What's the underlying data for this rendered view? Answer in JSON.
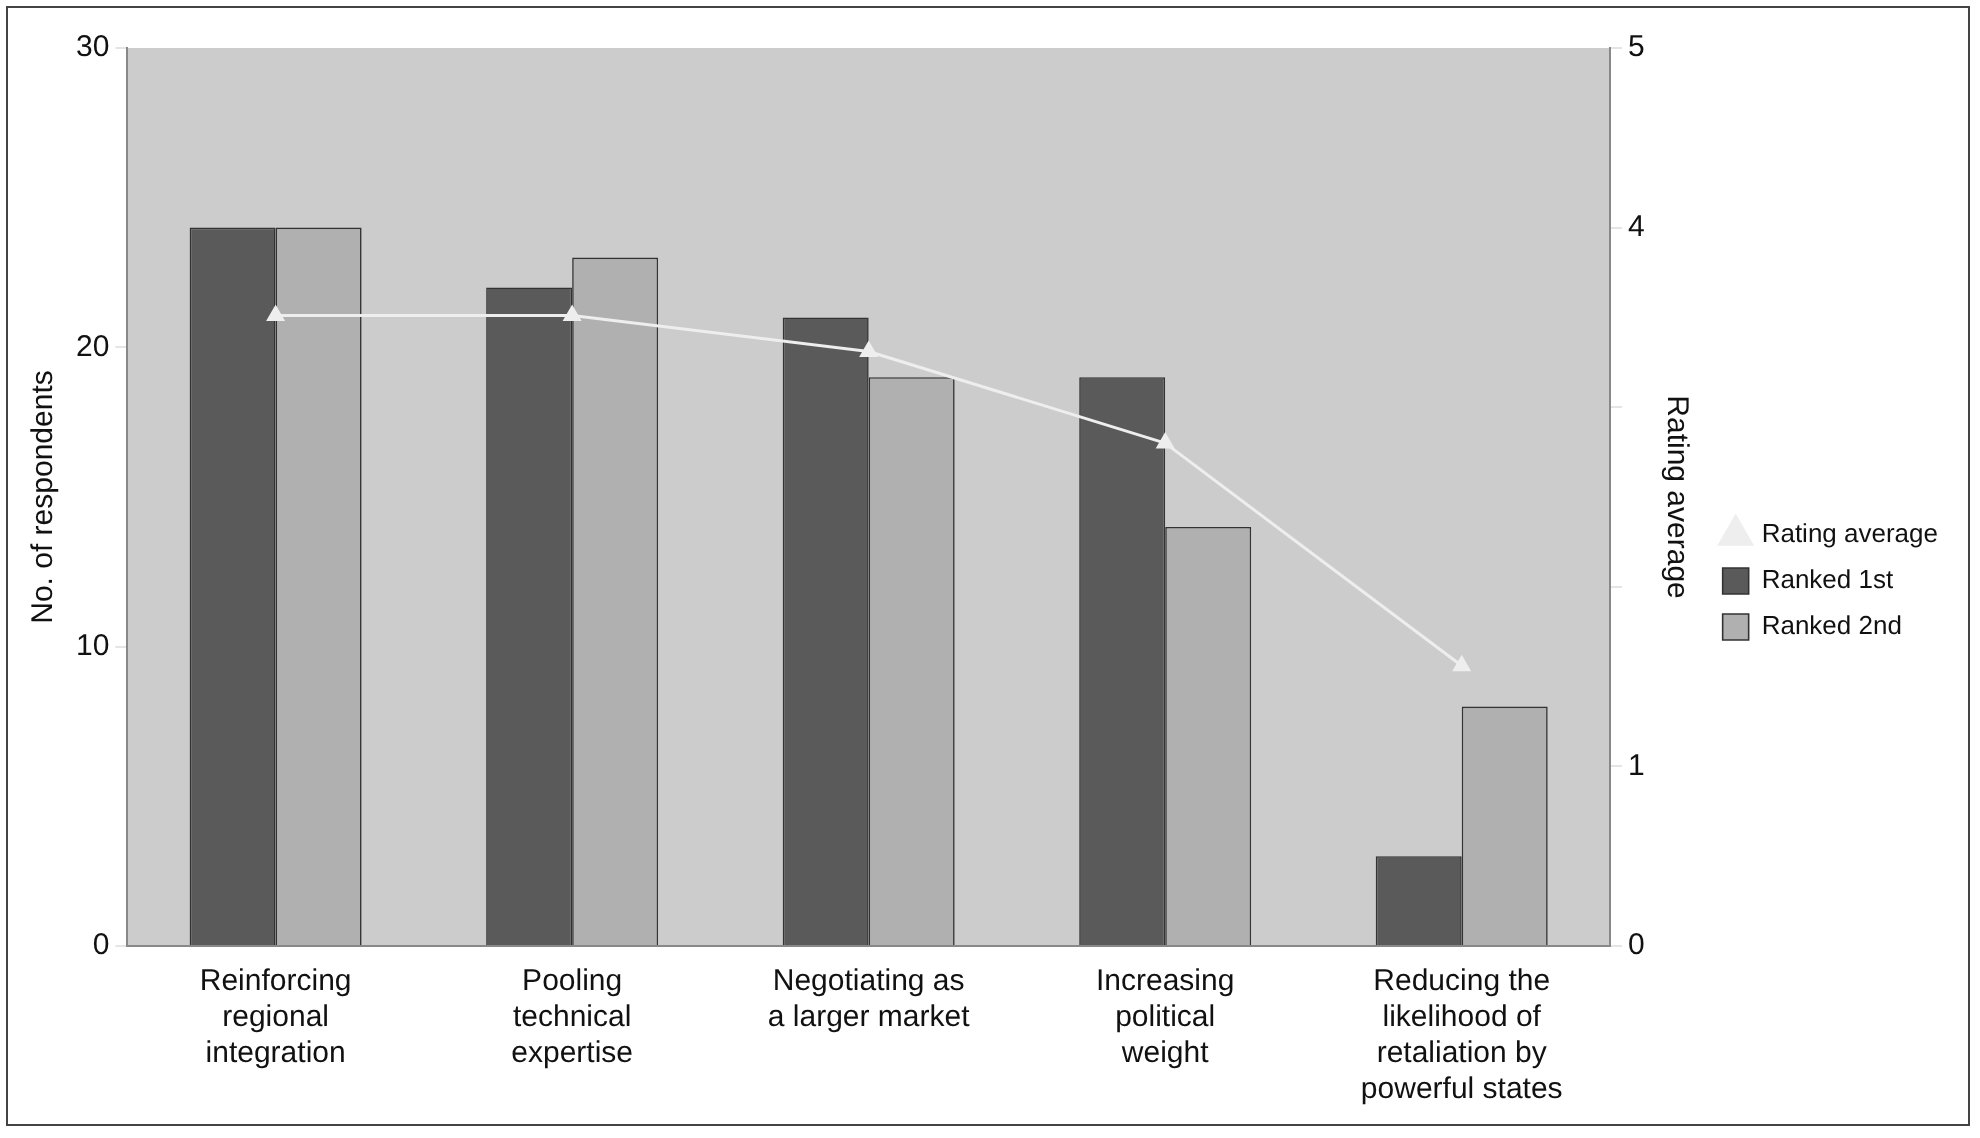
{
  "chart_data": {
    "type": "bar",
    "categories": [
      "Reinforcing regional integration",
      "Pooling technical expertise",
      "Negotiating as a larger market",
      "Increasing political weight",
      "Reducing the likelihood of retaliation by powerful states"
    ],
    "series": [
      {
        "name": "Ranked 1st",
        "color": "#5a5a5a",
        "values": [
          24,
          22,
          21,
          19,
          3
        ]
      },
      {
        "name": "Ranked 2nd",
        "color": "#b0b0b0",
        "values": [
          24,
          23,
          19,
          14,
          8
        ]
      },
      {
        "name": "Rating average",
        "type": "line",
        "axis": "y2",
        "color": "#eeeeee",
        "marker": "triangle",
        "values": [
          3.51,
          3.51,
          3.31,
          2.8,
          1.56
        ]
      }
    ],
    "ylabel": "No. of respondents",
    "y2label": "Rating average",
    "ylim": [
      0,
      30
    ],
    "yticks": [
      0,
      10,
      20,
      30
    ],
    "y2lim": [
      0,
      5
    ],
    "y2ticks": [
      0,
      1,
      {
        "value": 2,
        "label": null
      },
      {
        "value": 3,
        "label": null
      },
      4,
      5
    ],
    "grid": false,
    "legend": "right"
  }
}
